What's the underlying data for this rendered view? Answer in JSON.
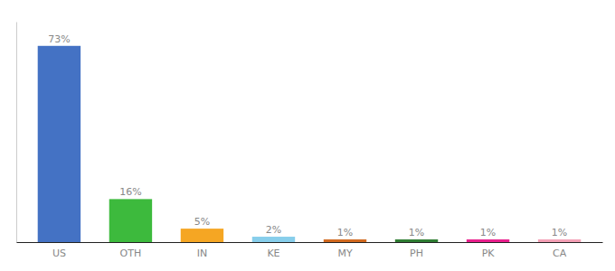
{
  "chart_data": {
    "type": "bar",
    "categories": [
      "US",
      "OTH",
      "IN",
      "KE",
      "MY",
      "PH",
      "PK",
      "CA"
    ],
    "values": [
      73,
      16,
      5,
      2,
      1,
      1,
      1,
      1
    ],
    "value_labels": [
      "73%",
      "16%",
      "5%",
      "2%",
      "1%",
      "1%",
      "1%",
      "1%"
    ],
    "colors": [
      "#4472c4",
      "#3dba3d",
      "#f5a623",
      "#87ceeb",
      "#d2691e",
      "#2e7d32",
      "#e91e8c",
      "#f4a0b5"
    ],
    "ylim": [
      0,
      82
    ],
    "grid": false,
    "data_labels": true,
    "tick_labels": "x"
  }
}
